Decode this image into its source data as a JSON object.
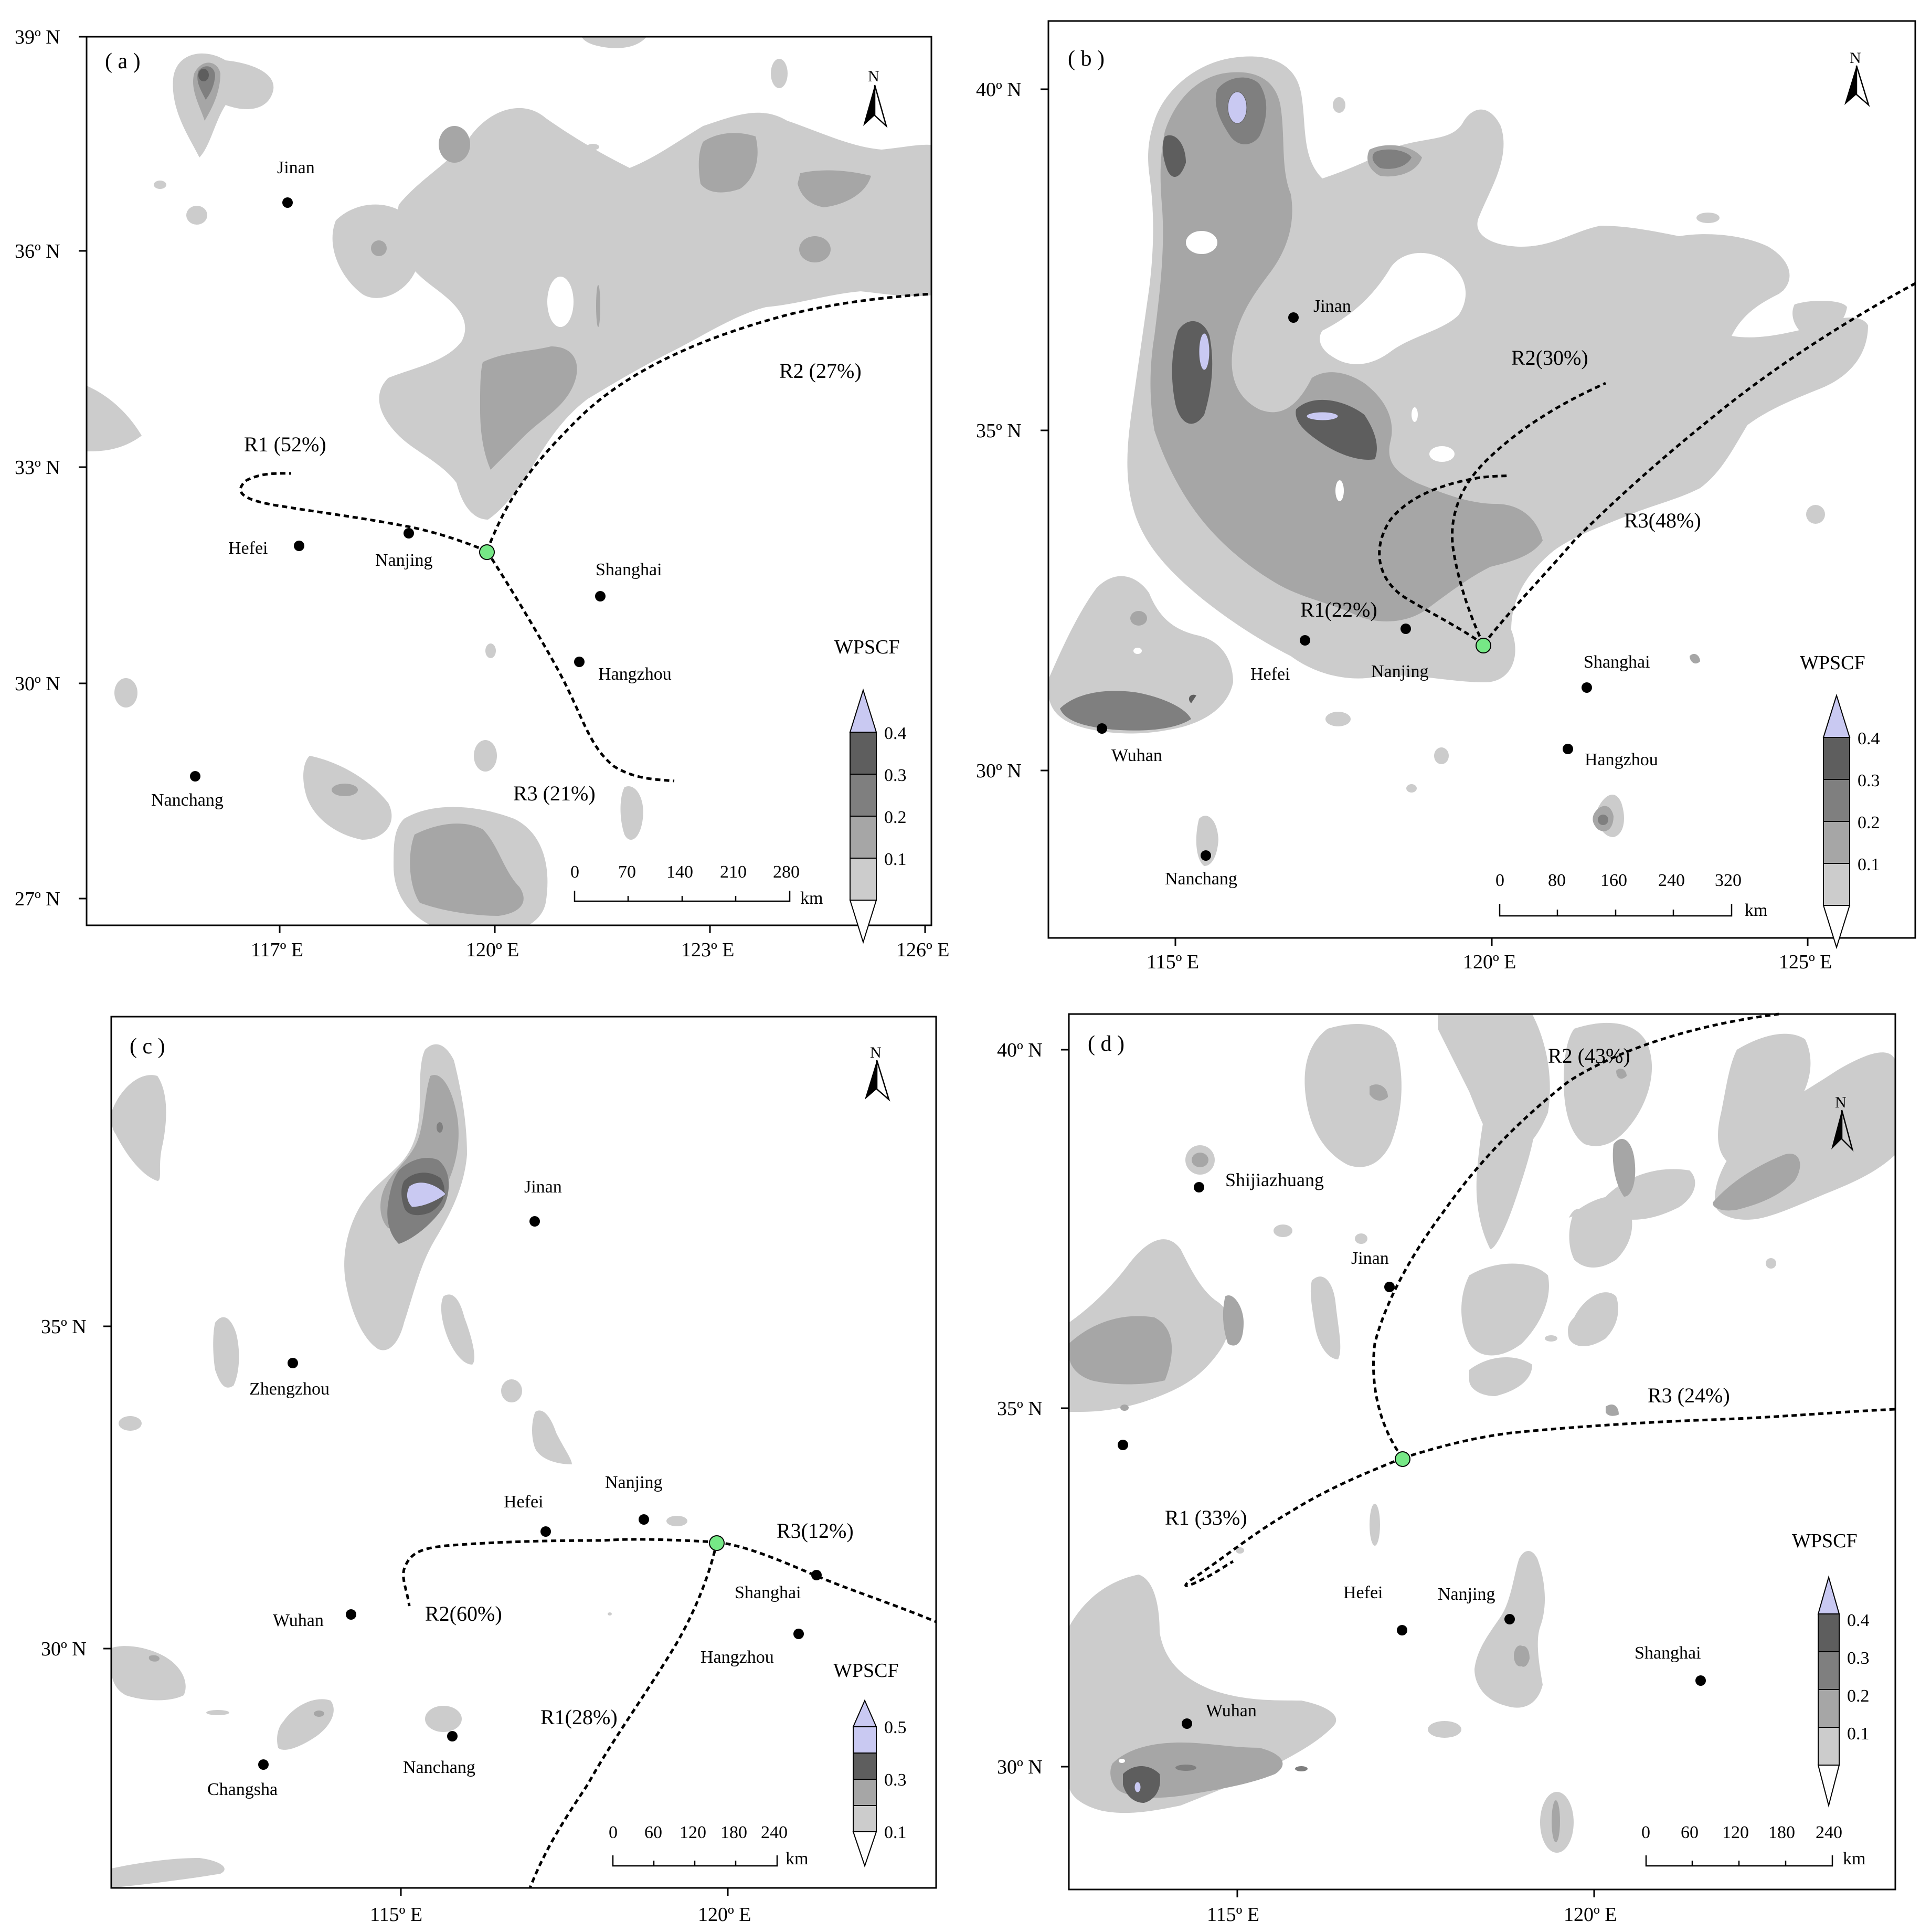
{
  "panels": [
    {
      "id": "a",
      "label": "( a )",
      "lat_labels": [
        "39º N",
        "36º N",
        "33º N",
        "30º N",
        "27º N"
      ],
      "lon_labels": [
        "117º E",
        "120º E",
        "123º E",
        "126º E"
      ],
      "cities": [
        "Jinan",
        "Hefei",
        "Nanjing",
        "Shanghai",
        "Hangzhou",
        "Nanchang"
      ],
      "routes": [
        "R1 (52%)",
        "R2 (27%)",
        "R3 (21%)"
      ],
      "legend": {
        "title": "WPSCF",
        "ticks": [
          "0.4",
          "0.3",
          "0.2",
          "0.1"
        ]
      },
      "scale": {
        "ticks": [
          "0",
          "70",
          "140",
          "210",
          "280"
        ],
        "unit": "km"
      }
    },
    {
      "id": "b",
      "label": "( b )",
      "lat_labels": [
        "40º N",
        "35º N",
        "30º N"
      ],
      "lon_labels": [
        "115º E",
        "120º E",
        "125º E"
      ],
      "cities": [
        "Jinan",
        "Hefei",
        "Nanjing",
        "Shanghai",
        "Hangzhou",
        "Wuhan",
        "Nanchang"
      ],
      "routes": [
        "R1(22%)",
        "R2(30%)",
        "R3(48%)"
      ],
      "legend": {
        "title": "WPSCF",
        "ticks": [
          "0.4",
          "0.3",
          "0.2",
          "0.1"
        ]
      },
      "scale": {
        "ticks": [
          "0",
          "80",
          "160",
          "240",
          "320"
        ],
        "unit": "km"
      }
    },
    {
      "id": "c",
      "label": "( c )",
      "lat_labels": [
        "35º N",
        "30º N"
      ],
      "lon_labels": [
        "115º E",
        "120º E"
      ],
      "cities": [
        "Jinan",
        "Zhengzhou",
        "Hefei",
        "Nanjing",
        "Wuhan",
        "Shanghai",
        "Hangzhou",
        "Nanchang",
        "Changsha"
      ],
      "routes": [
        "R1(28%)",
        "R2(60%)",
        "R3(12%)"
      ],
      "legend": {
        "title": "WPSCF",
        "ticks": [
          "0.5",
          "0.3",
          "0.1"
        ]
      },
      "scale": {
        "ticks": [
          "0",
          "60",
          "120",
          "180",
          "240"
        ],
        "unit": "km"
      }
    },
    {
      "id": "d",
      "label": "( d )",
      "lat_labels": [
        "40º N",
        "35º N",
        "30º N"
      ],
      "lon_labels": [
        "115º E",
        "120º E"
      ],
      "cities": [
        "Shijiazhuang",
        "Jinan",
        "Hefei",
        "Nanjing",
        "Shanghai",
        "Wuhan"
      ],
      "routes": [
        "R1 (33%)",
        "R2 (43%)",
        "R3 (24%)"
      ],
      "legend": {
        "title": "WPSCF",
        "ticks": [
          "0.4",
          "0.3",
          "0.2",
          "0.1"
        ]
      },
      "scale": {
        "ticks": [
          "0",
          "60",
          "120",
          "180",
          "240"
        ],
        "unit": "km"
      }
    }
  ],
  "north_arrow": "N",
  "colors": {
    "level1": "#cccccc",
    "level2": "#a6a6a6",
    "level3": "#7f7f7f",
    "level4": "#5e5e5e",
    "level5": "#c9c9f2",
    "receptor": "#76e886",
    "trajectory": "#000000"
  }
}
